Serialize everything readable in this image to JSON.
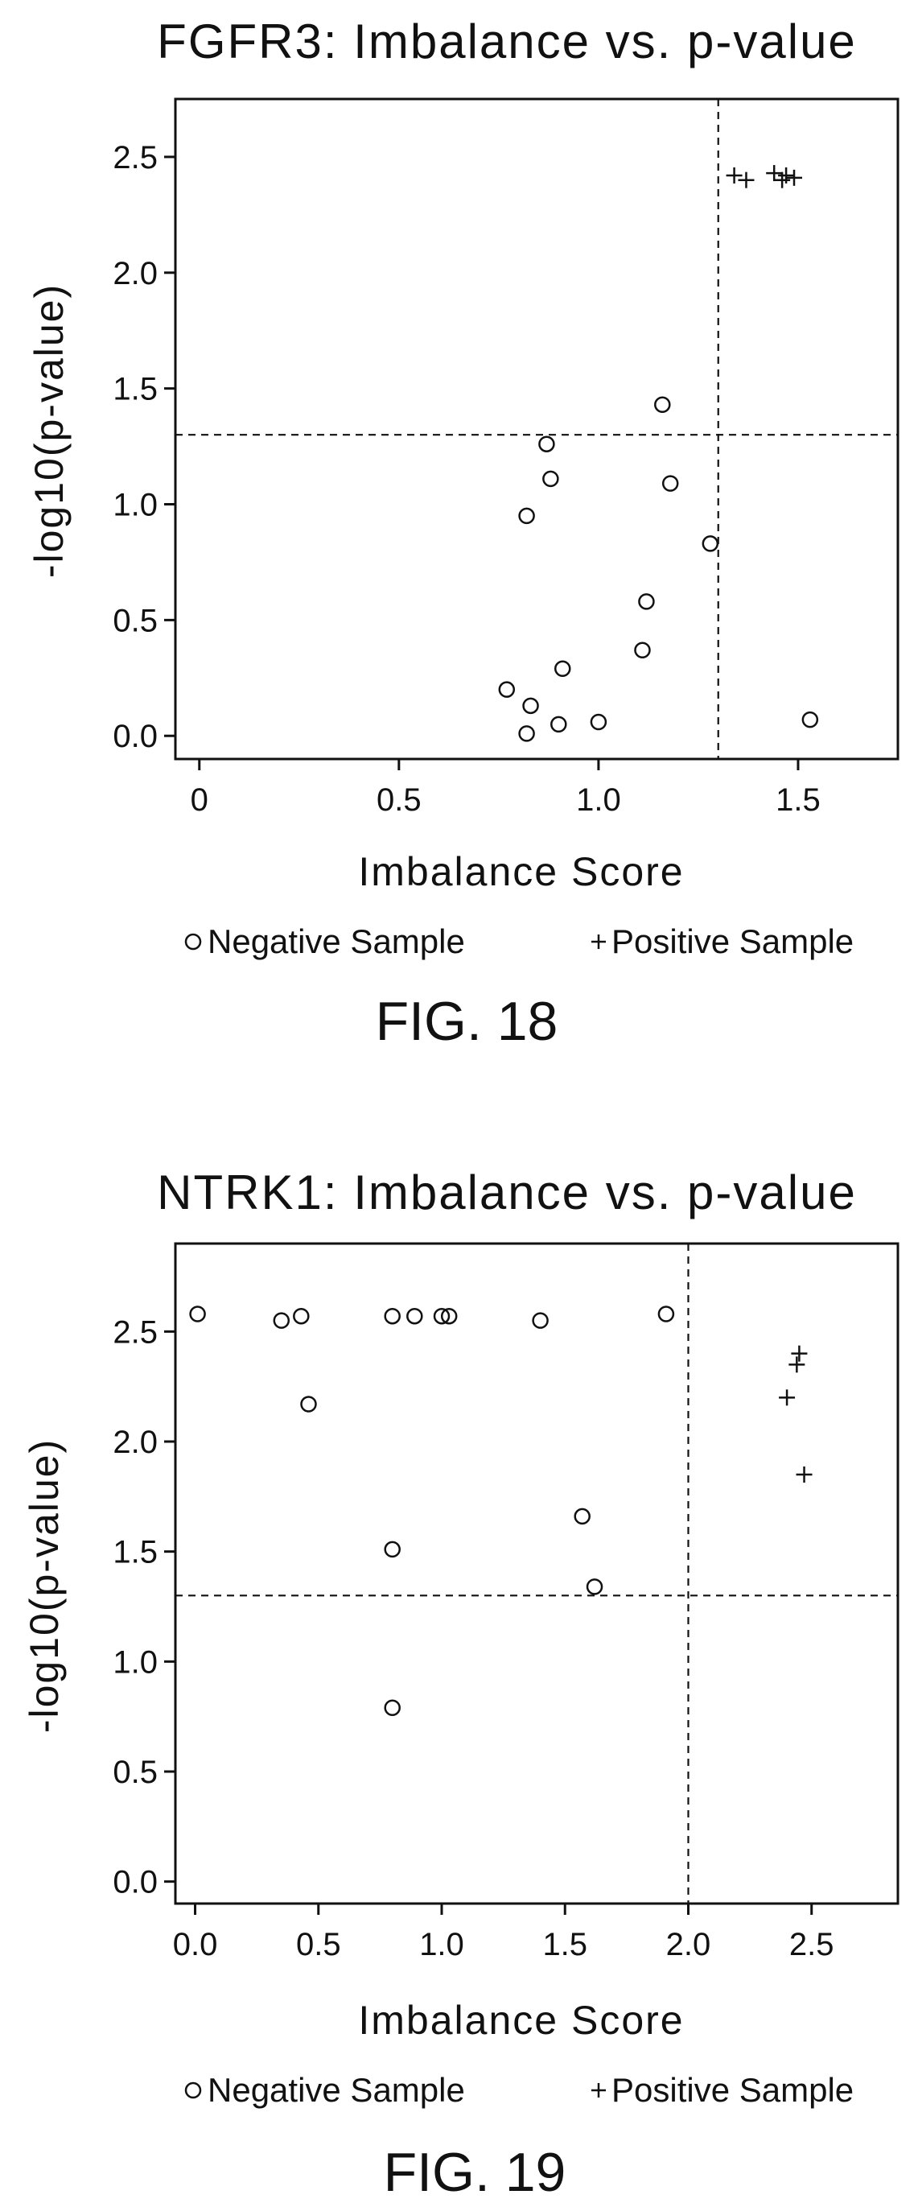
{
  "chart_data": [
    {
      "type": "scatter",
      "title": "FGFR3: Imbalance vs. p-value",
      "xlabel": "Imbalance Score",
      "ylabel": "-log10(p-value)",
      "xlim": [
        -0.06,
        1.75
      ],
      "ylim": [
        -0.1,
        2.75
      ],
      "x_ticks": [
        0,
        0.5,
        1.0,
        1.5
      ],
      "x_tick_labels": [
        "0",
        "0.5",
        "1.0",
        "1.5"
      ],
      "y_ticks": [
        0.0,
        0.5,
        1.0,
        1.5,
        2.0,
        2.5
      ],
      "y_tick_labels": [
        "0.0",
        "0.5",
        "1.0",
        "1.5",
        "2.0",
        "2.5"
      ],
      "reference_lines": {
        "vertical_x": 1.3,
        "horizontal_y": 1.3,
        "style": "dashed"
      },
      "grid": false,
      "legend_placement": "bottom",
      "caption": "FIG. 18",
      "series": [
        {
          "name": "Negative Sample",
          "marker": "circle",
          "x": [
            0.77,
            0.82,
            0.83,
            0.9,
            0.91,
            1.0,
            0.82,
            0.88,
            0.87,
            1.11,
            1.12,
            1.16,
            1.18,
            1.28,
            1.53
          ],
          "y": [
            0.2,
            0.01,
            0.13,
            0.05,
            0.29,
            0.06,
            0.95,
            1.11,
            1.26,
            0.37,
            0.58,
            1.43,
            1.09,
            0.83,
            0.07
          ]
        },
        {
          "name": "Positive Sample",
          "marker": "plus",
          "x": [
            1.34,
            1.37,
            1.44,
            1.46,
            1.47,
            1.49
          ],
          "y": [
            2.42,
            2.4,
            2.43,
            2.4,
            2.42,
            2.41
          ]
        }
      ]
    },
    {
      "type": "scatter",
      "title": "NTRK1: Imbalance vs. p-value",
      "xlabel": "Imbalance Score",
      "ylabel": "-log10(p-value)",
      "xlim": [
        -0.08,
        2.85
      ],
      "ylim": [
        -0.1,
        2.9
      ],
      "x_ticks": [
        0.0,
        0.5,
        1.0,
        1.5,
        2.0,
        2.5
      ],
      "x_tick_labels": [
        "0.0",
        "0.5",
        "1.0",
        "1.5",
        "2.0",
        "2.5"
      ],
      "y_ticks": [
        0.0,
        0.5,
        1.0,
        1.5,
        2.0,
        2.5
      ],
      "y_tick_labels": [
        "0.0",
        "0.5",
        "1.0",
        "1.5",
        "2.0",
        "2.5"
      ],
      "reference_lines": {
        "vertical_x": 2.0,
        "horizontal_y": 1.3,
        "style": "dashed"
      },
      "grid": false,
      "legend_placement": "bottom",
      "caption": "FIG. 19",
      "series": [
        {
          "name": "Negative Sample",
          "marker": "circle",
          "x": [
            0.01,
            0.35,
            0.43,
            0.46,
            0.8,
            0.89,
            1.0,
            1.03,
            1.4,
            1.91,
            0.8,
            1.57,
            1.62,
            0.8
          ],
          "y": [
            2.58,
            2.55,
            2.57,
            2.17,
            2.57,
            2.57,
            2.57,
            2.57,
            2.55,
            2.58,
            1.51,
            1.66,
            1.34,
            0.79
          ]
        },
        {
          "name": "Positive Sample",
          "marker": "plus",
          "x": [
            2.4,
            2.44,
            2.45,
            2.47
          ],
          "y": [
            2.2,
            2.35,
            2.4,
            1.85
          ]
        }
      ]
    }
  ],
  "legend_symbols": {
    "negative": "circle",
    "positive": "plus"
  },
  "colors": {
    "ink": "#111111",
    "background": "#ffffff"
  }
}
